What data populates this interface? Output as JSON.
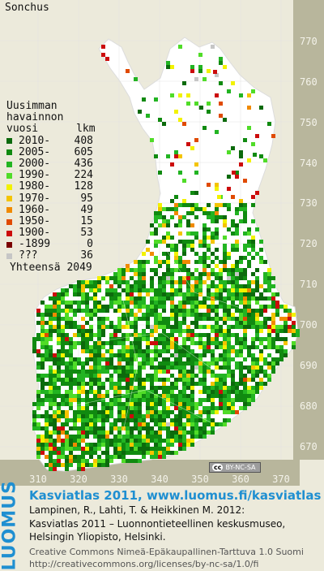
{
  "title": "Sonchus",
  "axes": {
    "y_labels": [
      "770",
      "760",
      "750",
      "740",
      "730",
      "720",
      "710",
      "700",
      "690",
      "680",
      "670"
    ],
    "x_labels": [
      "310",
      "320",
      "330",
      "340",
      "350",
      "360",
      "370"
    ]
  },
  "legend": {
    "heading": [
      "Uusimman",
      "havainnon",
      "vuosi      lkm"
    ],
    "rows": [
      {
        "label": "2010-",
        "count": "408",
        "color": "#0c6a0c"
      },
      {
        "label": "2005-",
        "count": "605",
        "color": "#108a10"
      },
      {
        "label": "2000-",
        "count": "436",
        "color": "#22b422"
      },
      {
        "label": "1990-",
        "count": "224",
        "color": "#50dc28"
      },
      {
        "label": "1980-",
        "count": "128",
        "color": "#f2f200"
      },
      {
        "label": "1970-",
        "count": "95",
        "color": "#f4c400"
      },
      {
        "label": "1960-",
        "count": "49",
        "color": "#f08a00"
      },
      {
        "label": "1950-",
        "count": "15",
        "color": "#e04a00"
      },
      {
        "label": "1900-",
        "count": "53",
        "color": "#cc0c0c"
      },
      {
        "label": "-1899",
        "count": "0",
        "color": "#7a0000"
      },
      {
        "label": "???",
        "count": "36",
        "color": "#c6c6c6"
      }
    ],
    "total": "Yhteensä 2049"
  },
  "badge": {
    "cc": "cc",
    "text": "BY-NC-SA"
  },
  "footer": {
    "logo": "LUOMUS",
    "heading": "Kasviatlas 2011, www.luomus.fi/kasviatlas",
    "citation": [
      "Lampinen, R., Lahti, T. & Heikkinen M. 2012:",
      "Kasviatlas 2011 – Luonnontieteellinen keskusmuseo,",
      "Helsingin Yliopisto, Helsinki."
    ],
    "license": [
      "Creative Commons Nimeä-Epäkaupallinen-Tarttuva 1.0 Suomi",
      "http://creativecommons.org/licenses/by-nc-sa/1.0/fi"
    ]
  }
}
